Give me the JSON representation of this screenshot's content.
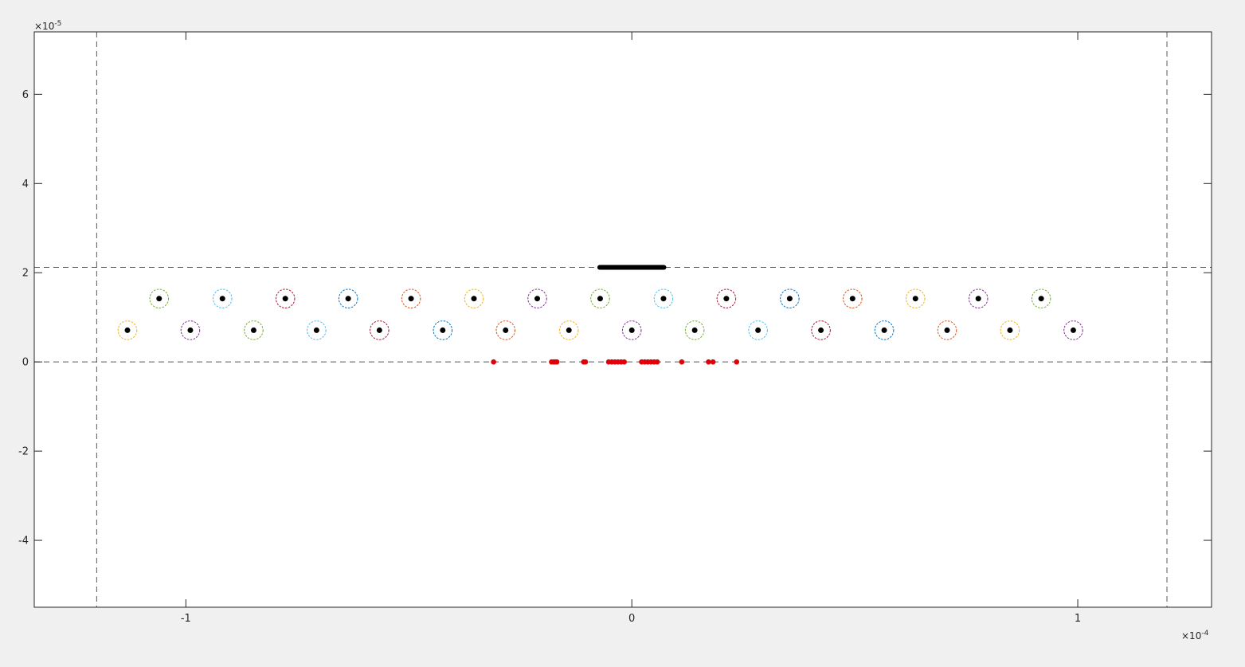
{
  "chart_data": {
    "type": "scatter",
    "title": "",
    "xlabel": "",
    "ylabel": "",
    "xlim": [
      -0.000134,
      0.00013
    ],
    "ylim": [
      -5.5e-05,
      7.4e-05
    ],
    "x_exponent_label": "×10",
    "x_exponent_power": "-4",
    "y_exponent_label": "×10",
    "y_exponent_power": "-5",
    "x_ticks": [
      {
        "value": -0.0001,
        "label": "-1"
      },
      {
        "value": 0,
        "label": "0"
      },
      {
        "value": 0.0001,
        "label": "1"
      }
    ],
    "y_ticks": [
      {
        "value": -4e-05,
        "label": "-4"
      },
      {
        "value": -2e-05,
        "label": "-2"
      },
      {
        "value": 0,
        "label": "0"
      },
      {
        "value": 2e-05,
        "label": "2"
      },
      {
        "value": 4e-05,
        "label": "4"
      },
      {
        "value": 6e-05,
        "label": "6"
      }
    ],
    "grid": false,
    "reference_lines": {
      "vertical_x": [
        -0.00012,
        0.00012
      ],
      "horizontal_y": [
        0,
        2.12e-05
      ],
      "color": "#595959"
    },
    "segment": {
      "x": [
        -7.2e-06,
        7.2e-06
      ],
      "y": 2.12e-05,
      "color": "#000000"
    },
    "circle_radius": 2.1e-06,
    "circles_row_upper": {
      "y": 1.42e-05,
      "x": [
        -0.000106,
        -9.18e-05,
        -7.77e-05,
        -6.36e-05,
        -4.95e-05,
        -3.54e-05,
        -2.12e-05,
        -7.1e-06,
        7.1e-06,
        2.12e-05,
        3.54e-05,
        4.95e-05,
        6.36e-05,
        7.77e-05,
        9.18e-05
      ],
      "colors": [
        "#77ac30",
        "#4dbeee",
        "#a2142f",
        "#0072bd",
        "#d95319",
        "#edb120",
        "#7e2f8e",
        "#77ac30",
        "#4dbeee",
        "#a2142f",
        "#0072bd",
        "#d95319",
        "#edb120",
        "#7e2f8e",
        "#77ac30"
      ]
    },
    "circles_row_lower": {
      "y": 7.1e-06,
      "x": [
        -0.0001131,
        -9.9e-05,
        -8.48e-05,
        -7.07e-05,
        -5.66e-05,
        -4.24e-05,
        -2.83e-05,
        -1.41e-05,
        0,
        1.41e-05,
        2.83e-05,
        4.24e-05,
        5.66e-05,
        7.07e-05,
        8.48e-05,
        9.9e-05
      ],
      "colors": [
        "#edb120",
        "#7e2f8e",
        "#77ac30",
        "#4dbeee",
        "#a2142f",
        "#0072bd",
        "#d95319",
        "#edb120",
        "#7e2f8e",
        "#77ac30",
        "#4dbeee",
        "#a2142f",
        "#0072bd",
        "#d95319",
        "#edb120",
        "#7e2f8e"
      ]
    },
    "red_points": {
      "y": 0,
      "x": [
        -3.1e-05,
        -1.8e-05,
        -1.75e-05,
        -1.72e-05,
        -1.68e-05,
        -1.08e-05,
        -1.04e-05,
        -5.2e-06,
        -4.5e-06,
        -3.8e-06,
        -3.1e-06,
        -2.4e-06,
        -1.7e-06,
        2.2e-06,
        2.9e-06,
        3.6e-06,
        4.3e-06,
        5e-06,
        5.7e-06,
        1.12e-05,
        1.72e-05,
        1.82e-05,
        2.35e-05
      ],
      "color": "#e0000a"
    }
  }
}
